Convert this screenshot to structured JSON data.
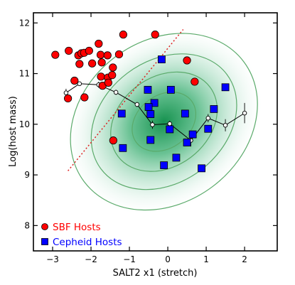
{
  "chart_data": {
    "type": "scatter",
    "xlabel": "SALT2 x1 (stretch)",
    "ylabel": "Log(host mass)",
    "xlim": [
      -3.5,
      2.85
    ],
    "ylim": [
      7.5,
      12.2
    ],
    "xticks": [
      -3,
      -2,
      -1,
      0,
      1,
      2
    ],
    "yticks": [
      8,
      9,
      10,
      11,
      12
    ],
    "grid": false,
    "legend_position": "bottom-left",
    "series": [
      {
        "name": "SBF Hosts",
        "marker": "circle",
        "color": "#ff0000",
        "points": [
          {
            "x": -2.93,
            "y": 11.37
          },
          {
            "x": -2.58,
            "y": 11.45
          },
          {
            "x": -2.33,
            "y": 11.36
          },
          {
            "x": -2.25,
            "y": 11.4
          },
          {
            "x": -2.18,
            "y": 11.41
          },
          {
            "x": -2.05,
            "y": 11.45
          },
          {
            "x": -1.8,
            "y": 11.59
          },
          {
            "x": -1.75,
            "y": 11.37
          },
          {
            "x": -1.57,
            "y": 11.36
          },
          {
            "x": -1.27,
            "y": 11.38
          },
          {
            "x": -1.16,
            "y": 11.77
          },
          {
            "x": -0.33,
            "y": 11.77
          },
          {
            "x": 0.5,
            "y": 11.26
          },
          {
            "x": -2.3,
            "y": 11.19
          },
          {
            "x": -1.97,
            "y": 11.2
          },
          {
            "x": -1.72,
            "y": 11.22
          },
          {
            "x": -1.43,
            "y": 11.12
          },
          {
            "x": -2.43,
            "y": 10.86
          },
          {
            "x": -1.74,
            "y": 10.94
          },
          {
            "x": -1.56,
            "y": 10.92
          },
          {
            "x": -1.45,
            "y": 10.97
          },
          {
            "x": -1.7,
            "y": 10.76
          },
          {
            "x": -1.55,
            "y": 10.82
          },
          {
            "x": -2.17,
            "y": 10.53
          },
          {
            "x": -2.6,
            "y": 10.51
          },
          {
            "x": 0.7,
            "y": 10.84
          },
          {
            "x": -1.42,
            "y": 9.68
          }
        ]
      },
      {
        "name": "Cepheid Hosts",
        "marker": "square",
        "color": "#0000ff",
        "points": [
          {
            "x": -0.16,
            "y": 11.28
          },
          {
            "x": 1.5,
            "y": 10.73
          },
          {
            "x": -0.52,
            "y": 10.68
          },
          {
            "x": 0.08,
            "y": 10.68
          },
          {
            "x": -0.35,
            "y": 10.42
          },
          {
            "x": -0.5,
            "y": 10.34
          },
          {
            "x": -1.2,
            "y": 10.21
          },
          {
            "x": -0.45,
            "y": 10.2
          },
          {
            "x": 0.45,
            "y": 10.21
          },
          {
            "x": 1.2,
            "y": 10.3
          },
          {
            "x": 0.05,
            "y": 9.9
          },
          {
            "x": 0.65,
            "y": 9.8
          },
          {
            "x": 1.05,
            "y": 9.91
          },
          {
            "x": -0.45,
            "y": 9.69
          },
          {
            "x": 0.5,
            "y": 9.64
          },
          {
            "x": -1.17,
            "y": 9.53
          },
          {
            "x": 0.22,
            "y": 9.34
          },
          {
            "x": -0.1,
            "y": 9.19
          },
          {
            "x": 0.88,
            "y": 9.13
          }
        ]
      }
    ],
    "binned_mean": {
      "color": "#000000",
      "points": [
        {
          "x": -2.65,
          "y": 10.62,
          "err": 0.08
        },
        {
          "x": -2.3,
          "y": 10.8,
          "err": 0.04
        },
        {
          "x": -1.8,
          "y": 10.78,
          "err": 0.06
        },
        {
          "x": -1.35,
          "y": 10.63,
          "err": 0.05
        },
        {
          "x": -0.8,
          "y": 10.39,
          "err": 0.05
        },
        {
          "x": -0.4,
          "y": 9.99,
          "err": 0.08
        },
        {
          "x": 0.05,
          "y": 10.01,
          "err": 0.06
        },
        {
          "x": 0.6,
          "y": 9.68,
          "err": 0.12
        },
        {
          "x": 1.05,
          "y": 10.12,
          "err": 0.08
        },
        {
          "x": 1.5,
          "y": 9.98,
          "err": 0.12
        },
        {
          "x": 2.0,
          "y": 10.22,
          "err": 0.2
        }
      ]
    },
    "fit_line": {
      "style": "dotted",
      "color": "#dd2222",
      "x": [
        -2.6,
        0.4
      ],
      "y": [
        9.08,
        11.87
      ]
    },
    "density_contours": {
      "color": "#5aaa6a",
      "fill": "#0a8c46",
      "center": {
        "x": -0.1,
        "y": 10.05
      },
      "angle_deg": -37,
      "levels": [
        {
          "ax": 2.6,
          "ay": 1.6
        },
        {
          "ax": 2.05,
          "ay": 1.2
        },
        {
          "ax": 1.5,
          "ay": 0.88
        },
        {
          "ax": 0.9,
          "ay": 0.52
        }
      ]
    }
  }
}
